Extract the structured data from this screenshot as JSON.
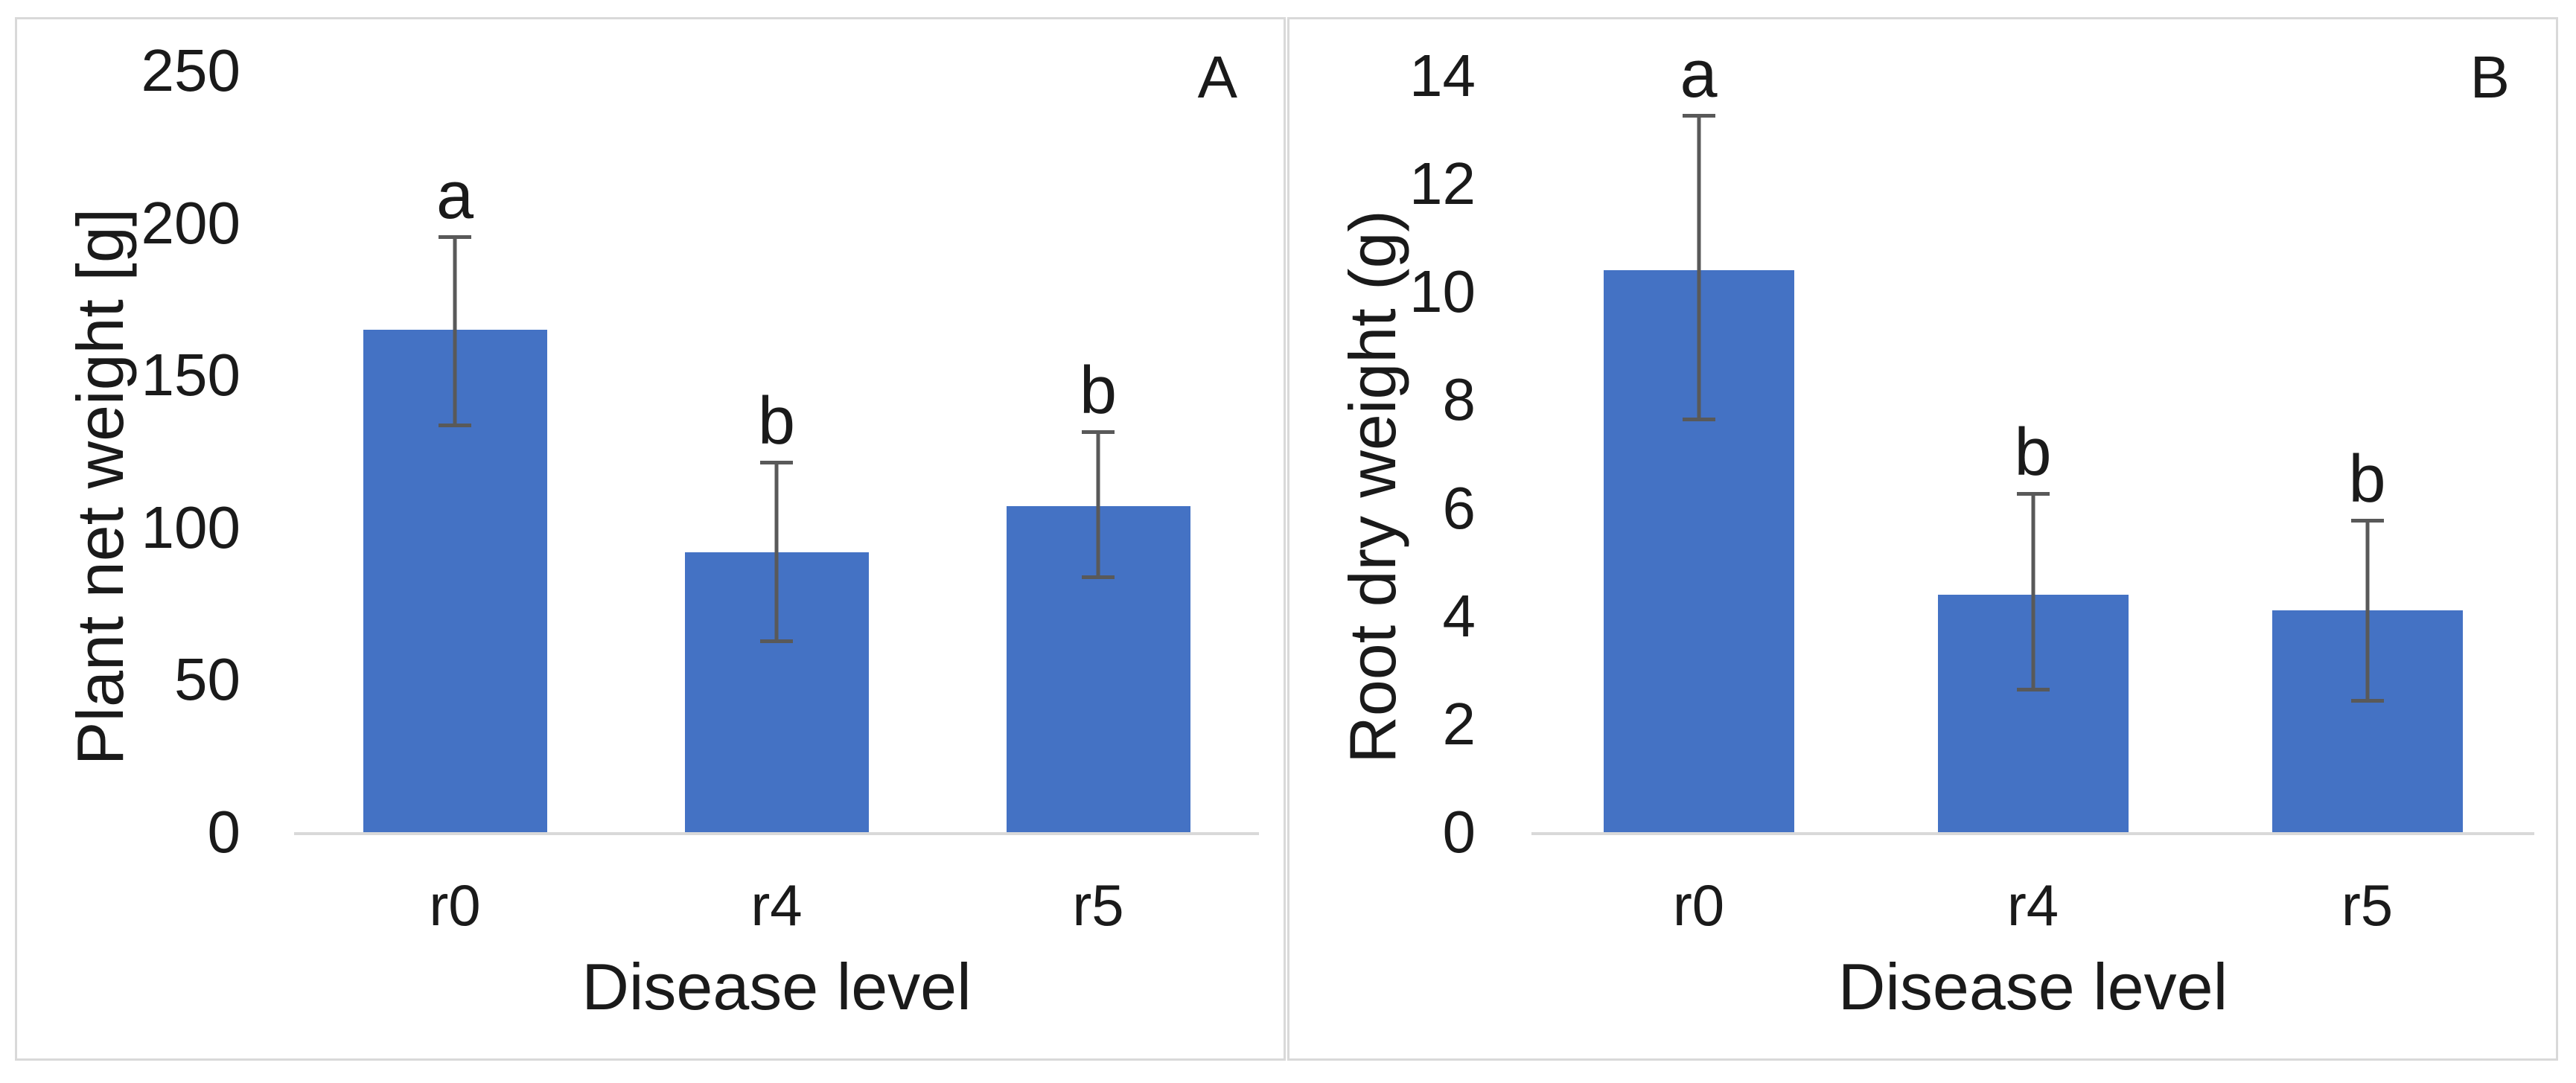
{
  "colors": {
    "bar_fill": "#4472C4",
    "error_bar": "#595959",
    "axis_line": "#D9D9D9",
    "panel_border": "#D9D9D9",
    "text": "#1A1A1A"
  },
  "chart_data": [
    {
      "type": "bar",
      "panel_label": "A",
      "title": "",
      "ylabel": "Plant net weight [g]",
      "xlabel": "Disease level",
      "categories": [
        "r0",
        "r4",
        "r5"
      ],
      "values": [
        165,
        92,
        107
      ],
      "error_low": [
        133,
        62,
        83
      ],
      "error_high": [
        196,
        122,
        132
      ],
      "sig_letters": [
        "a",
        "b",
        "b"
      ],
      "y_ticks": [
        0,
        50,
        100,
        150,
        200,
        250
      ],
      "ylim": [
        0,
        250
      ],
      "grid": false,
      "legend": false,
      "bar_color": "#4472C4"
    },
    {
      "type": "bar",
      "panel_label": "B",
      "title": "",
      "ylabel": "Root dry weight (g)",
      "xlabel": "Disease level",
      "categories": [
        "r0",
        "r4",
        "r5"
      ],
      "values": [
        10.4,
        4.4,
        4.1
      ],
      "error_low": [
        7.6,
        2.6,
        2.4
      ],
      "error_high": [
        13.3,
        6.3,
        5.8
      ],
      "sig_letters": [
        "a",
        "b",
        "b"
      ],
      "y_ticks": [
        0,
        2,
        4,
        6,
        8,
        10,
        12,
        14
      ],
      "ylim": [
        0,
        14
      ],
      "grid": false,
      "legend": false,
      "bar_color": "#4472C4"
    }
  ]
}
